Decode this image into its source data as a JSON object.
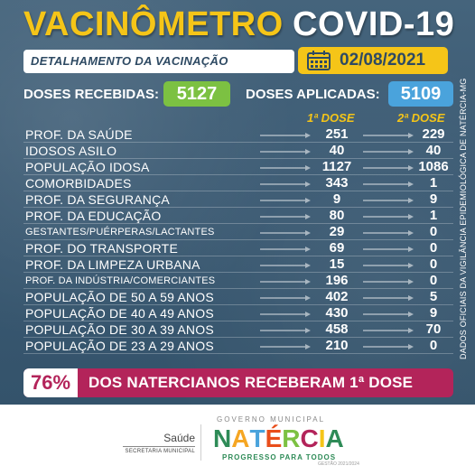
{
  "header": {
    "title_part1": "VACINÔMETRO",
    "title_part2": "COVID-19",
    "subtitle": "DETALHAMENTO DA VACINAÇÃO",
    "date": "02/08/2021",
    "calendar_icon": "calendar-icon"
  },
  "summary": {
    "received_label": "DOSES RECEBIDAS:",
    "received_value": "5127",
    "applied_label": "DOSES APLICADAS:",
    "applied_value": "5109"
  },
  "table": {
    "col1_header": "1ª DOSE",
    "col2_header": "2ª DOSE",
    "rows": [
      {
        "label": "PROF. DA SAÚDE",
        "dose1": "251",
        "dose2": "229"
      },
      {
        "label": "IDOSOS ASILO",
        "dose1": "40",
        "dose2": "40"
      },
      {
        "label": "POPULAÇÃO IDOSA",
        "dose1": "1127",
        "dose2": "1086"
      },
      {
        "label": "COMORBIDADES",
        "dose1": "343",
        "dose2": "1"
      },
      {
        "label": "PROF. DA SEGURANÇA",
        "dose1": "9",
        "dose2": "9"
      },
      {
        "label": "PROF. DA EDUCAÇÃO",
        "dose1": "80",
        "dose2": "1"
      },
      {
        "label": "GESTANTES/PUÉRPERAS/LACTANTES",
        "dose1": "29",
        "dose2": "0",
        "small": true
      },
      {
        "label": "PROF. DO TRANSPORTE",
        "dose1": "69",
        "dose2": "0"
      },
      {
        "label": "PROF. DA LIMPEZA URBANA",
        "dose1": "15",
        "dose2": "0"
      },
      {
        "label": "PROF. DA INDÚSTRIA/COMERCIANTES",
        "dose1": "196",
        "dose2": "0",
        "small": true
      },
      {
        "label": "POPULAÇÃO DE 50 A 59 ANOS",
        "dose1": "402",
        "dose2": "5"
      },
      {
        "label": "POPULAÇÃO DE 40 A 49 ANOS",
        "dose1": "430",
        "dose2": "9"
      },
      {
        "label": "POPULAÇÃO DE 30 A 39 ANOS",
        "dose1": "458",
        "dose2": "70"
      },
      {
        "label": "POPULAÇÃO DE 23 A 29 ANOS",
        "dose1": "210",
        "dose2": "0"
      }
    ]
  },
  "side_note": "DADOS OFICIAIS DA VIGILÂNCIA EPIDEMIOLÓGICA DE NATÉRCIA-MG",
  "banner": {
    "percent": "76%",
    "text": "DOS NATERCIANOS RECEBERAM 1ª DOSE"
  },
  "footer": {
    "saude": "Saúde",
    "saude_sub": "SECRETARIA MUNICIPAL",
    "gov_label": "GOVERNO MUNICIPAL",
    "city": "NATÉRCIA",
    "slogan": "PROGRESSO PARA TODOS",
    "gestao": "GESTÃO 2021/2024"
  },
  "colors": {
    "yellow": "#f5c518",
    "green": "#7cc142",
    "blue": "#4aa3dc",
    "magenta": "#b3245a",
    "panel": "#3b5a73"
  }
}
